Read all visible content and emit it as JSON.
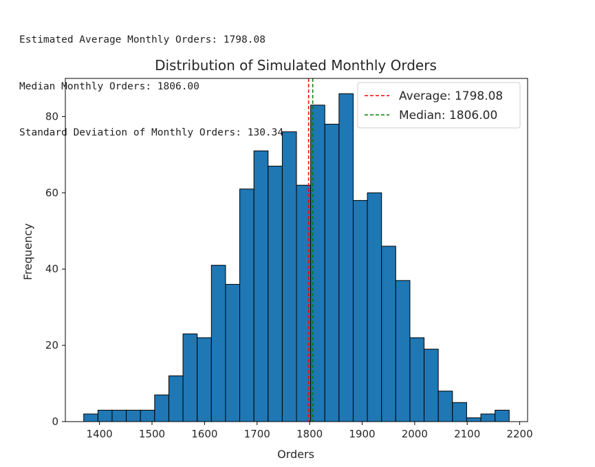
{
  "console_output": [
    "Estimated Average Monthly Orders: 1798.08",
    "Median Monthly Orders: 1806.00",
    "Standard Deviation of Monthly Orders: 130.34"
  ],
  "chart_data": {
    "type": "bar",
    "subtype": "histogram",
    "title": "Distribution of Simulated Monthly Orders",
    "xlabel": "Orders",
    "ylabel": "Frequency",
    "xlim": [
      1335,
      2215
    ],
    "ylim": [
      0,
      90
    ],
    "xticks": [
      1400,
      1500,
      1600,
      1700,
      1800,
      1900,
      2000,
      2100,
      2200
    ],
    "yticks": [
      0,
      20,
      40,
      60,
      80
    ],
    "bin_start": 1370,
    "bin_width": 27,
    "counts": [
      2,
      3,
      3,
      3,
      3,
      7,
      12,
      23,
      22,
      41,
      36,
      61,
      71,
      67,
      76,
      62,
      83,
      78,
      86,
      58,
      60,
      46,
      37,
      22,
      19,
      8,
      5,
      1,
      2,
      3
    ],
    "bar_color": "#1f77b4",
    "edge_color": "#000000",
    "grid": false,
    "legend_position": "upper right",
    "reference_lines": [
      {
        "label": "Average: 1798.08",
        "x": 1798.08,
        "color": "#ff0000",
        "style": "dashed"
      },
      {
        "label": "Median: 1806.00",
        "x": 1806.0,
        "color": "#008000",
        "style": "dashed"
      }
    ]
  }
}
